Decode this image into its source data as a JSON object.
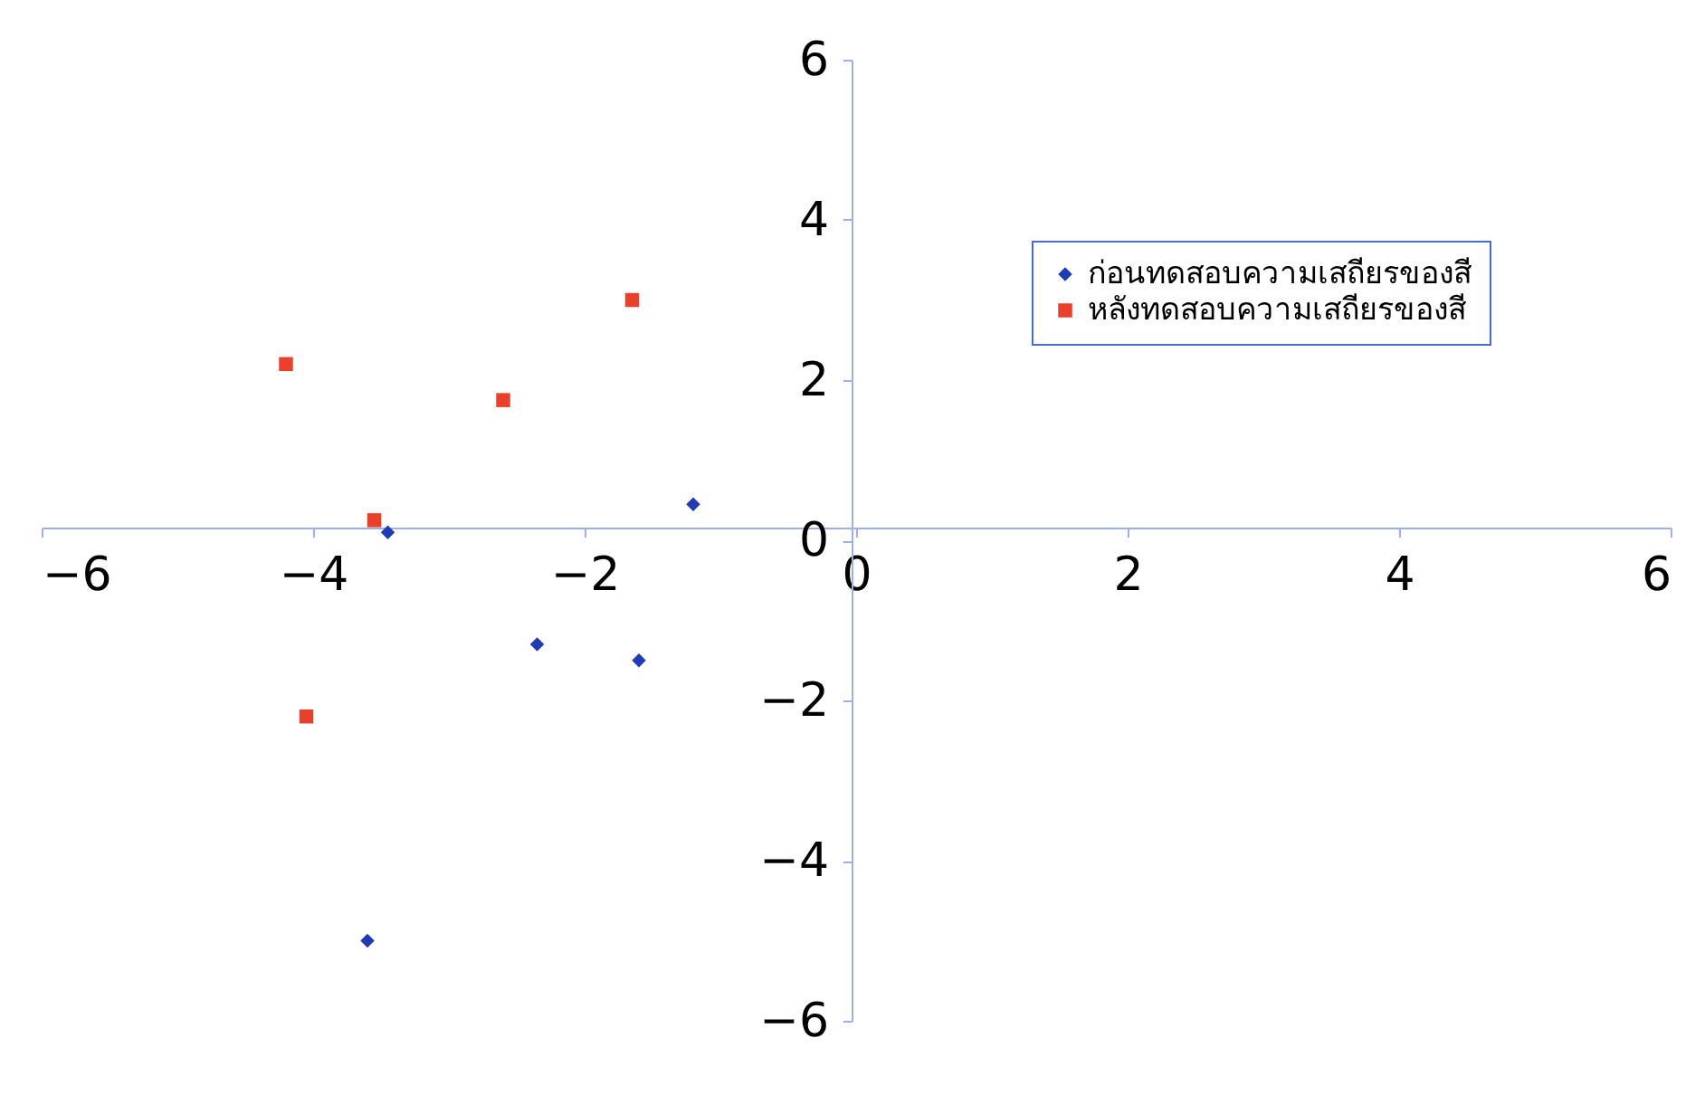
{
  "chart_data": {
    "type": "scatter",
    "xlim": [
      -6,
      6
    ],
    "xticks": [
      -6,
      -4,
      -2,
      0,
      2,
      4,
      6
    ],
    "ylim": [
      -6,
      6
    ],
    "yticks": [
      -6,
      -4,
      -2,
      0,
      2,
      4,
      6
    ],
    "grid": false,
    "legend": "top right",
    "series": [
      {
        "name": "ก่อนทดสอบความเสถียรของสี",
        "color": "#1f3cb4",
        "marker": "diamond",
        "x": [
          -3.45,
          -1.2,
          -2.35,
          -1.6,
          -3.6
        ],
        "values": [
          0.1,
          0.45,
          -1.3,
          -1.5,
          -5.0
        ]
      },
      {
        "name": "หลังทดสอบความเสถียรของสี",
        "color": "#e8402a",
        "marker": "square",
        "x": [
          -4.2,
          -1.65,
          -2.6,
          -3.55,
          -4.05
        ],
        "values": [
          2.2,
          3.0,
          1.75,
          0.25,
          -2.2
        ]
      }
    ]
  }
}
